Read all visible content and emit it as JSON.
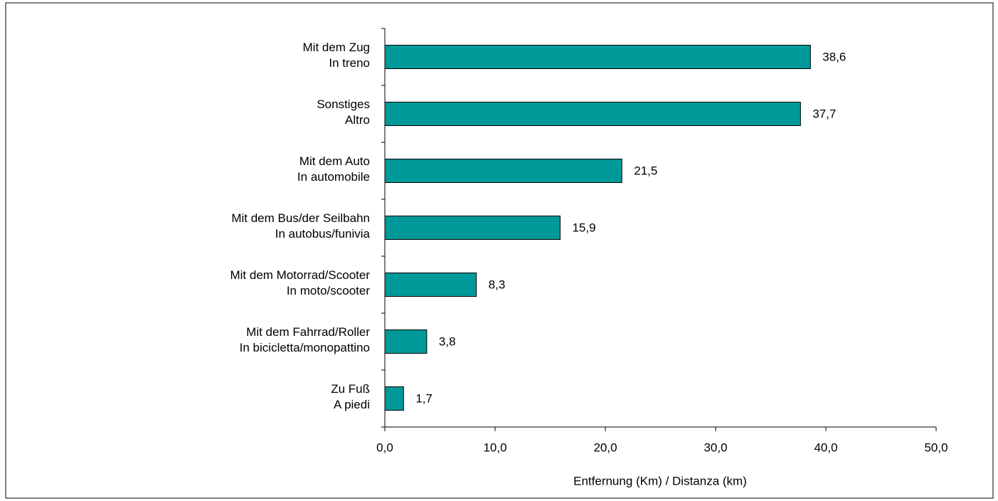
{
  "chart_data": {
    "type": "bar",
    "orientation": "horizontal",
    "x_label": "Entfernung  (Km) / Distanza (km)",
    "categories": [
      "Mit dem Zug\nIn treno",
      "Sonstiges\nAltro",
      "Mit dem Auto\nIn automobile",
      "Mit dem Bus/der Seilbahn\nIn autobus/funivia",
      "Mit dem Motorrad/Scooter\nIn moto/scooter",
      "Mit dem Fahrrad/Roller\nIn bicicletta/monopattino",
      "Zu Fuß\nA piedi"
    ],
    "values": [
      38.6,
      37.7,
      21.5,
      15.9,
      8.3,
      3.8,
      1.7
    ],
    "value_labels": [
      "38,6",
      "37,7",
      "21,5",
      "15,9",
      "8,3",
      "3,8",
      "1,7"
    ],
    "color": "#009999",
    "xlim": [
      0,
      50
    ],
    "xticks": [
      {
        "value": 0,
        "label": "0,0"
      },
      {
        "value": 10,
        "label": "10,0"
      },
      {
        "value": 20,
        "label": "20,0"
      },
      {
        "value": 30,
        "label": "30,0"
      },
      {
        "value": 40,
        "label": "40,0"
      },
      {
        "value": 50,
        "label": "50,0"
      }
    ]
  }
}
